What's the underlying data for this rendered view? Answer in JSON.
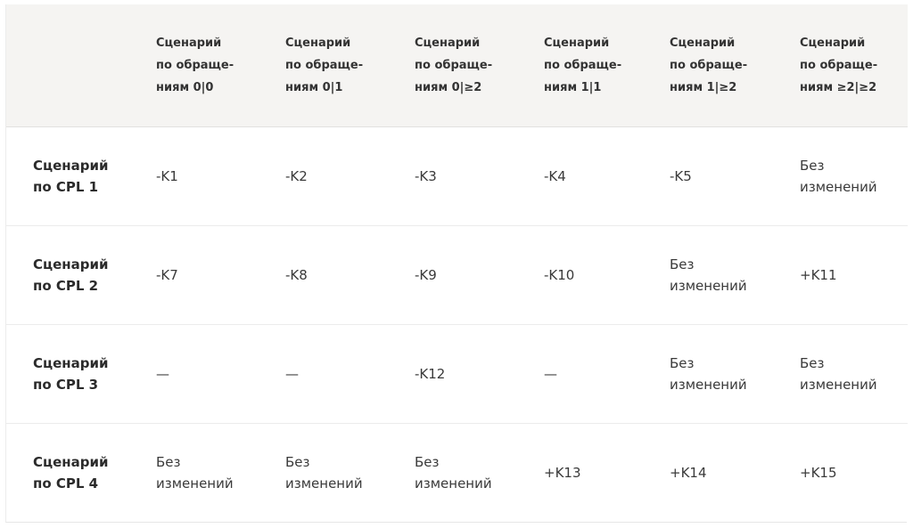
{
  "table": {
    "header": {
      "corner": "",
      "columns": [
        [
          "Сценарий",
          "по обраще-",
          "ниям 0|0"
        ],
        [
          "Сценарий",
          "по обраще-",
          "ниям 0|1"
        ],
        [
          "Сценарий",
          "по обраще-",
          "ниям 0|≥2"
        ],
        [
          "Сценарий",
          "по обраще-",
          "ниям 1|1"
        ],
        [
          "Сценарий",
          "по обраще-",
          "ниям 1|≥2"
        ],
        [
          "Сценарий",
          "по обраще-",
          "ниям ≥2|≥2"
        ]
      ]
    },
    "rows": [
      {
        "label": [
          "Сценарий",
          "по CPL 1"
        ],
        "cells": [
          [
            "-K1"
          ],
          [
            "-K2"
          ],
          [
            "-K3"
          ],
          [
            "-K4"
          ],
          [
            "-K5"
          ],
          [
            "Без",
            "изменений"
          ]
        ]
      },
      {
        "label": [
          "Сценарий",
          "по CPL 2"
        ],
        "cells": [
          [
            "-K7"
          ],
          [
            "-K8"
          ],
          [
            "-K9"
          ],
          [
            "-K10"
          ],
          [
            "Без",
            "изменений"
          ],
          [
            "+K11"
          ]
        ]
      },
      {
        "label": [
          "Сценарий",
          "по CPL 3"
        ],
        "cells": [
          [
            "—"
          ],
          [
            "—"
          ],
          [
            "-K12"
          ],
          [
            "—"
          ],
          [
            "Без",
            "изменений"
          ],
          [
            "Без",
            "изменений"
          ]
        ]
      },
      {
        "label": [
          "Сценарий",
          "по CPL 4"
        ],
        "cells": [
          [
            "Без",
            "изменений"
          ],
          [
            "Без",
            "изменений"
          ],
          [
            "Без",
            "изменений"
          ],
          [
            "+K13"
          ],
          [
            "+K14"
          ],
          [
            "+K15"
          ]
        ]
      }
    ]
  }
}
